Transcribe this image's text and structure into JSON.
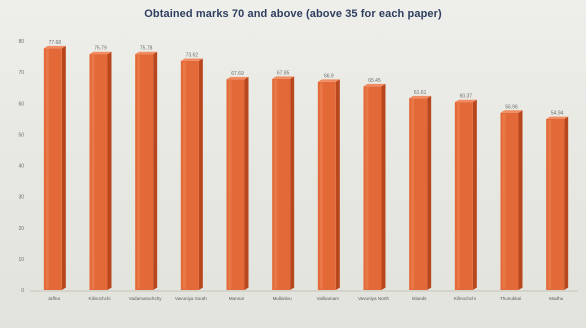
{
  "chart_data": {
    "type": "bar",
    "title": "Obtained marks 70 and above (above 35  for each paper)",
    "categories": [
      "Jaffna",
      "Kilinochchi",
      "Vadamarachchy",
      "Vavuniya South",
      "Mannar",
      "Mullaitivu",
      "Valikamam",
      "Vavuniya North",
      "Islands",
      "Kilinochchi",
      "Thunukkai",
      "Madhu"
    ],
    "values": [
      77.68,
      75.79,
      75.78,
      73.62,
      67.69,
      67.85,
      66.9,
      65.45,
      61.61,
      60.37,
      56.96,
      54.94
    ],
    "value_labels": [
      "77.68",
      "75.79",
      "75.78",
      "73.62",
      "67.69",
      "67.85",
      "66.9",
      "65.45",
      "61.61",
      "60.37",
      "56.96",
      "54.94"
    ],
    "ylim": [
      0,
      80
    ],
    "yticks": [
      0,
      10,
      20,
      30,
      40,
      50,
      60,
      70,
      80
    ],
    "grid": false,
    "legend": "none",
    "bar_color": "#e36a38",
    "bar_side_color": "#b9471e",
    "bar_top_color": "#f08c60"
  }
}
